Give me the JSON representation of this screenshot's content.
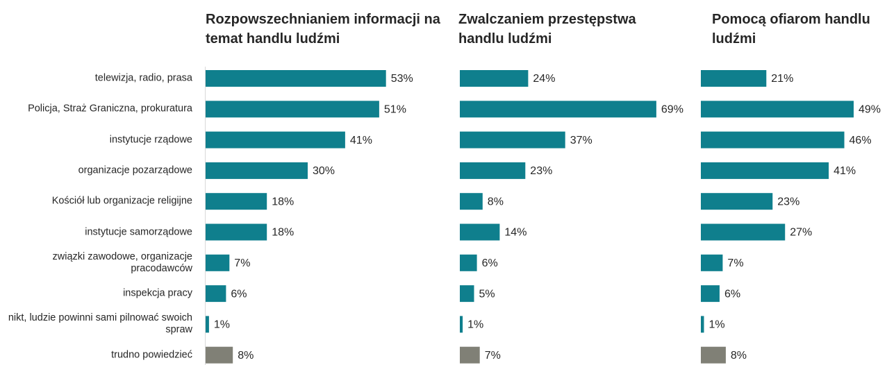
{
  "chart_data": [
    {
      "type": "bar",
      "title": "Rozpowszechnianiem informacji na temat handlu ludźmi",
      "categories": [
        "telewizja, radio, prasa",
        "Policja, Straż Graniczna, prokuratura",
        "instytucje rządowe",
        "organizacje pozarządowe",
        "Kościół lub organizacje religijne",
        "instytucje samorządowe",
        "związki zawodowe, organizacje pracodawców",
        "inspekcja pracy",
        "nikt, ludzie powinni sami pilnować swoich spraw",
        "trudno powiedzieć"
      ],
      "values": [
        53,
        51,
        41,
        30,
        18,
        18,
        7,
        6,
        1,
        8
      ],
      "value_labels": [
        "53%",
        "51%",
        "41%",
        "30%",
        "18%",
        "18%",
        "7%",
        "6%",
        "1%",
        "8%"
      ],
      "colors": [
        "#0f7f8d",
        "#0f7f8d",
        "#0f7f8d",
        "#0f7f8d",
        "#0f7f8d",
        "#0f7f8d",
        "#0f7f8d",
        "#0f7f8d",
        "#0f7f8d",
        "#808076"
      ]
    },
    {
      "type": "bar",
      "title": "Zwalczaniem przestępstwa handlu ludźmi",
      "values": [
        24,
        69,
        37,
        23,
        8,
        14,
        6,
        5,
        1,
        7
      ],
      "value_labels": [
        "24%",
        "69%",
        "37%",
        "23%",
        "8%",
        "14%",
        "6%",
        "5%",
        "1%",
        "7%"
      ],
      "colors": [
        "#0f7f8d",
        "#0f7f8d",
        "#0f7f8d",
        "#0f7f8d",
        "#0f7f8d",
        "#0f7f8d",
        "#0f7f8d",
        "#0f7f8d",
        "#0f7f8d",
        "#808076"
      ]
    },
    {
      "type": "bar",
      "title": "Pomocą ofiarom handlu ludźmi",
      "values": [
        21,
        49,
        46,
        41,
        23,
        27,
        7,
        6,
        1,
        8
      ],
      "value_labels": [
        "21%",
        "49%",
        "46%",
        "41%",
        "23%",
        "27%",
        "7%",
        "6%",
        "1%",
        "8%"
      ],
      "colors": [
        "#0f7f8d",
        "#0f7f8d",
        "#0f7f8d",
        "#0f7f8d",
        "#0f7f8d",
        "#0f7f8d",
        "#0f7f8d",
        "#0f7f8d",
        "#0f7f8d",
        "#808076"
      ]
    }
  ]
}
